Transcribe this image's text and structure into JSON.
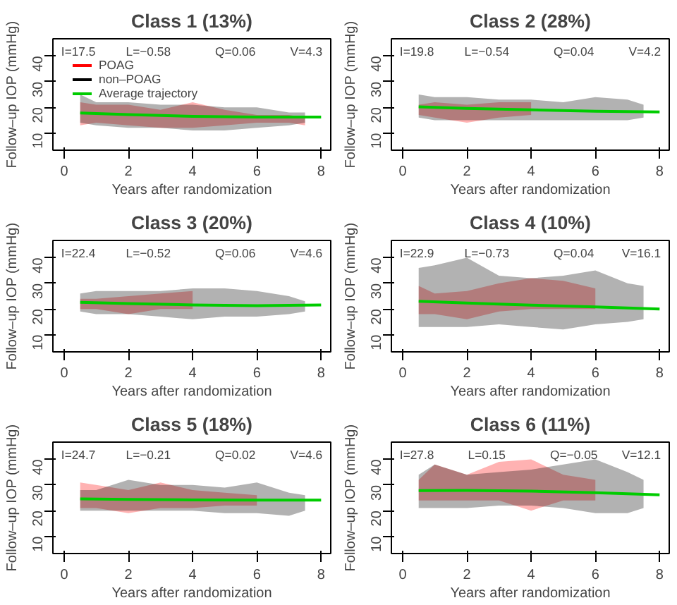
{
  "chart_data": [
    {
      "type": "line",
      "title": "Class 1 (13%)",
      "xlabel": "Years after randomization",
      "ylabel": "Follow–up IOP (mmHg)",
      "xlim": [
        -0.35,
        8.3
      ],
      "ylim": [
        3.3,
        46.7
      ],
      "xticks": [
        0,
        2,
        4,
        6,
        8
      ],
      "yticks": [
        10,
        20,
        30,
        40
      ],
      "grid": false,
      "legend": "top left",
      "annotations": [
        "I=17.5",
        "L=−0.58",
        "Q=0.06",
        "V=4.3"
      ],
      "series": [
        {
          "name": "POAG",
          "color": "#ff0000",
          "x": [
            0.5,
            1,
            2,
            3,
            4,
            5,
            6,
            7,
            7.5
          ],
          "values": [
            null,
            null,
            null,
            null,
            null,
            null,
            null,
            null,
            null
          ],
          "lower": [
            13,
            14,
            13,
            12,
            12,
            13,
            14,
            14,
            13
          ],
          "upper": [
            22,
            21,
            21,
            19,
            22,
            19,
            17,
            17,
            16
          ]
        },
        {
          "name": "non–POAG",
          "color": "#000000",
          "x": [
            0.5,
            1,
            2,
            3,
            4,
            5,
            6,
            7,
            7.5
          ],
          "values": [
            null,
            null,
            null,
            null,
            null,
            null,
            null,
            null,
            null
          ],
          "lower": [
            14,
            13,
            12,
            12,
            11,
            11,
            12,
            13,
            14
          ],
          "upper": [
            25,
            22,
            22,
            21,
            21,
            20,
            20,
            18,
            18
          ]
        },
        {
          "name": "Average trajectory",
          "color": "#00cc00",
          "x": [
            0.5,
            2,
            4,
            6,
            8
          ],
          "values": [
            17.8,
            17.2,
            16.5,
            16.2,
            16.2
          ]
        }
      ]
    },
    {
      "type": "line",
      "title": "Class 2 (28%)",
      "xlabel": "Years after randomization",
      "ylabel": "Follow–up IOP (mmHg)",
      "xlim": [
        -0.35,
        8.3
      ],
      "ylim": [
        3.3,
        46.7
      ],
      "xticks": [
        0,
        2,
        4,
        6,
        8
      ],
      "yticks": [
        10,
        20,
        30,
        40
      ],
      "grid": false,
      "annotations": [
        "I=19.8",
        "L=−0.54",
        "Q=0.04",
        "V=4.2"
      ],
      "series": [
        {
          "color": "#ff0000",
          "x": [
            0.5,
            1,
            2,
            3,
            4
          ],
          "values": [
            null,
            null,
            null,
            null,
            null
          ],
          "lower": [
            17,
            16,
            14,
            16,
            17
          ],
          "upper": [
            21,
            22,
            21,
            22,
            22
          ]
        },
        {
          "color": "#000000",
          "x": [
            0.5,
            1,
            2,
            3,
            4,
            5,
            6,
            7,
            7.5
          ],
          "values": [
            null,
            null,
            null,
            null,
            null,
            null,
            null,
            null,
            null
          ],
          "lower": [
            16,
            15,
            15,
            15,
            15,
            15,
            15,
            15,
            16
          ],
          "upper": [
            25,
            24,
            24,
            23,
            23,
            22,
            24,
            23,
            21
          ]
        },
        {
          "color": "#00cc00",
          "x": [
            0.5,
            2,
            4,
            6,
            8
          ],
          "values": [
            20.2,
            19.6,
            19,
            18.5,
            18.2
          ]
        }
      ]
    },
    {
      "type": "line",
      "title": "Class 3 (20%)",
      "xlabel": "Years after randomization",
      "ylabel": "Follow–up IOP (mmHg)",
      "xlim": [
        -0.35,
        8.3
      ],
      "ylim": [
        3.3,
        46.7
      ],
      "xticks": [
        0,
        2,
        4,
        6,
        8
      ],
      "yticks": [
        10,
        20,
        30,
        40
      ],
      "grid": false,
      "annotations": [
        "I=22.4",
        "L=−0.52",
        "Q=0.06",
        "V=4.6"
      ],
      "series": [
        {
          "color": "#ff0000",
          "x": [
            0.5,
            1,
            2,
            3,
            4
          ],
          "values": [
            null,
            null,
            null,
            null,
            null
          ],
          "lower": [
            20,
            20,
            18,
            20,
            20
          ],
          "upper": [
            24,
            24,
            25,
            26,
            27
          ]
        },
        {
          "color": "#000000",
          "x": [
            0.5,
            1,
            2,
            3,
            4,
            5,
            6,
            7,
            7.5
          ],
          "values": [
            null,
            null,
            null,
            null,
            null,
            null,
            null,
            null,
            null
          ],
          "lower": [
            19,
            18,
            18,
            17,
            16,
            17,
            17,
            18,
            19
          ],
          "upper": [
            26,
            27,
            27,
            27,
            28,
            28,
            27,
            25,
            23
          ]
        },
        {
          "color": "#00cc00",
          "x": [
            0.5,
            2,
            4,
            6,
            8
          ],
          "values": [
            22.6,
            22.1,
            21.6,
            21.3,
            21.6
          ]
        }
      ]
    },
    {
      "type": "line",
      "title": "Class 4 (10%)",
      "xlabel": "Years after randomization",
      "ylabel": "Follow–up IOP (mmHg)",
      "xlim": [
        -0.35,
        8.3
      ],
      "ylim": [
        3.3,
        46.7
      ],
      "xticks": [
        0,
        2,
        4,
        6,
        8
      ],
      "yticks": [
        10,
        20,
        30,
        40
      ],
      "grid": false,
      "annotations": [
        "I=22.9",
        "L=−0.73",
        "Q=0.04",
        "V=16.1"
      ],
      "series": [
        {
          "color": "#ff0000",
          "x": [
            0.5,
            1,
            2,
            3,
            4,
            5,
            6
          ],
          "values": [
            null,
            null,
            null,
            null,
            null,
            null,
            null
          ],
          "lower": [
            18,
            18,
            16,
            19,
            20,
            20,
            20
          ],
          "upper": [
            29,
            26,
            27,
            30,
            32,
            31,
            28
          ]
        },
        {
          "color": "#000000",
          "x": [
            0.5,
            1,
            2,
            3,
            4,
            5,
            6,
            7,
            7.5
          ],
          "values": [
            null,
            null,
            null,
            null,
            null,
            null,
            null,
            null,
            null
          ],
          "lower": [
            13,
            13,
            13,
            14,
            13,
            12,
            14,
            15,
            16
          ],
          "upper": [
            36,
            37,
            40,
            33,
            32,
            33,
            35,
            30,
            29
          ]
        },
        {
          "color": "#00cc00",
          "x": [
            0.5,
            2,
            4,
            6,
            8
          ],
          "values": [
            23,
            22.3,
            21.5,
            20.8,
            20
          ]
        }
      ]
    },
    {
      "type": "line",
      "title": "Class 5 (18%)",
      "xlabel": "Years after randomization",
      "ylabel": "Follow–up IOP (mmHg)",
      "xlim": [
        -0.35,
        8.3
      ],
      "ylim": [
        3.3,
        46.7
      ],
      "xticks": [
        0,
        2,
        4,
        6,
        8
      ],
      "yticks": [
        10,
        20,
        30,
        40
      ],
      "grid": false,
      "annotations": [
        "I=24.7",
        "L=−0.21",
        "Q=0.02",
        "V=4.6"
      ],
      "series": [
        {
          "color": "#ff0000",
          "x": [
            0.5,
            1,
            2,
            3,
            4,
            5,
            6
          ],
          "values": [
            null,
            null,
            null,
            null,
            null,
            null,
            null
          ],
          "lower": [
            21,
            21,
            19,
            21,
            21,
            22,
            22
          ],
          "upper": [
            31,
            30,
            28,
            31,
            28,
            27,
            26
          ]
        },
        {
          "color": "#000000",
          "x": [
            0.5,
            1,
            2,
            3,
            4,
            5,
            6,
            7,
            7.5
          ],
          "values": [
            null,
            null,
            null,
            null,
            null,
            null,
            null,
            null,
            null
          ],
          "lower": [
            20,
            20,
            20,
            20,
            20,
            19,
            19,
            18,
            20
          ],
          "upper": [
            28,
            28,
            32,
            30,
            30,
            29,
            31,
            27,
            26
          ]
        },
        {
          "color": "#00cc00",
          "x": [
            0.5,
            2,
            4,
            6,
            8
          ],
          "values": [
            24.6,
            24.4,
            24.2,
            24.1,
            24.1
          ]
        }
      ]
    },
    {
      "type": "line",
      "title": "Class 6 (11%)",
      "xlabel": "Years after randomization",
      "ylabel": "Follow–up IOP (mmHg)",
      "xlim": [
        -0.35,
        8.3
      ],
      "ylim": [
        3.3,
        46.7
      ],
      "xticks": [
        0,
        2,
        4,
        6,
        8
      ],
      "yticks": [
        10,
        20,
        30,
        40
      ],
      "grid": false,
      "annotations": [
        "I=27.8",
        "L=0.15",
        "Q=−0.05",
        "V=12.1"
      ],
      "series": [
        {
          "color": "#ff0000",
          "x": [
            0.5,
            1,
            2,
            3,
            4,
            5,
            6
          ],
          "values": [
            null,
            null,
            null,
            null,
            null,
            null,
            null
          ],
          "lower": [
            24,
            24,
            24,
            24,
            20,
            24,
            24
          ],
          "upper": [
            32,
            38,
            34,
            39,
            40,
            34,
            32
          ]
        },
        {
          "color": "#000000",
          "x": [
            0.5,
            1,
            2,
            3,
            4,
            5,
            6,
            7,
            7.5
          ],
          "values": [
            null,
            null,
            null,
            null,
            null,
            null,
            null,
            null,
            null
          ],
          "lower": [
            21,
            21,
            21,
            22,
            22,
            21,
            19,
            19,
            21
          ],
          "upper": [
            34,
            38,
            34,
            35,
            36,
            38,
            40,
            35,
            32
          ]
        },
        {
          "color": "#00cc00",
          "x": [
            0.5,
            2,
            4,
            6,
            8
          ],
          "values": [
            27.8,
            27.9,
            27.6,
            27,
            26.2
          ]
        }
      ]
    }
  ]
}
